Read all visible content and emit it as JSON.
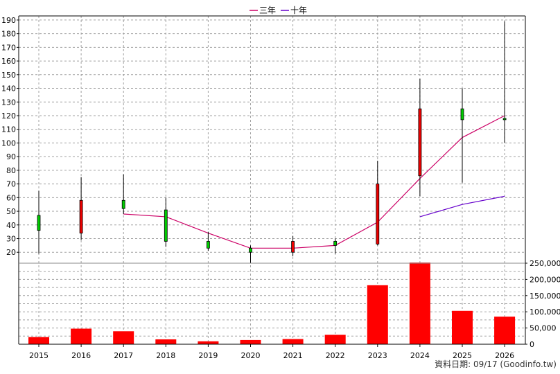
{
  "chart_data": {
    "type": "candlestick",
    "legend": [
      {
        "label": "三年",
        "color": "#cc0066"
      },
      {
        "label": "十年",
        "color": "#6600cc"
      }
    ],
    "footer": "資料日期: 09/17  (Goodinfo.tw)",
    "x_categories": [
      "2015",
      "2016",
      "2017",
      "2018",
      "2019",
      "2020",
      "2021",
      "2022",
      "2023",
      "2024",
      "2025",
      "2026"
    ],
    "price_axis": {
      "ylim": [
        12,
        193
      ],
      "ticks": [
        20,
        30,
        40,
        50,
        60,
        70,
        80,
        90,
        100,
        110,
        120,
        130,
        140,
        150,
        160,
        170,
        180,
        190
      ],
      "tick_labels": [
        "20",
        "30",
        "40",
        "50",
        "60",
        "70",
        "80",
        "90",
        "100",
        "110",
        "120",
        "130",
        "140",
        "150",
        "160",
        "170",
        "180",
        "190"
      ]
    },
    "volume_axis": {
      "ylim": [
        0,
        250000
      ],
      "ticks": [
        0,
        50000,
        100000,
        150000,
        200000,
        250000
      ],
      "tick_labels": [
        "0",
        "50,000",
        "100,000",
        "150,000",
        "200,000",
        "250,000"
      ]
    },
    "candles": [
      {
        "year": "2015",
        "open": 36,
        "high": 65,
        "low": 19,
        "close": 47
      },
      {
        "year": "2016",
        "open": 58,
        "high": 75,
        "low": 29,
        "close": 34
      },
      {
        "year": "2017",
        "open": 52,
        "high": 77,
        "low": 48,
        "close": 58
      },
      {
        "year": "2018",
        "open": 28,
        "high": 60,
        "low": 24,
        "close": 51
      },
      {
        "year": "2019",
        "open": 23,
        "high": 35,
        "low": 21,
        "close": 28
      },
      {
        "year": "2020",
        "open": 20,
        "high": 25,
        "low": 12,
        "close": 23
      },
      {
        "year": "2021",
        "open": 28,
        "high": 32,
        "low": 17,
        "close": 20
      },
      {
        "year": "2022",
        "open": 25,
        "high": 30,
        "low": 19,
        "close": 28
      },
      {
        "year": "2023",
        "open": 70,
        "high": 87,
        "low": 25,
        "close": 26
      },
      {
        "year": "2024",
        "open": 125,
        "high": 147,
        "low": 61,
        "close": 76
      },
      {
        "year": "2025",
        "open": 117,
        "high": 140,
        "low": 71,
        "close": 125
      },
      {
        "year": "2026",
        "open": 117,
        "high": 189,
        "low": 100,
        "close": 118
      }
    ],
    "series": [
      {
        "name": "三年",
        "color": "#cc0066",
        "years": [
          "2017",
          "2018",
          "2019",
          "2020",
          "2021",
          "2022",
          "2023",
          "2024",
          "2025",
          "2026"
        ],
        "values": [
          48,
          46,
          34,
          23,
          23,
          25,
          42,
          74,
          104,
          120
        ]
      },
      {
        "name": "十年",
        "color": "#6600cc",
        "years": [
          "2024",
          "2025",
          "2026"
        ],
        "values": [
          46,
          55,
          61
        ]
      }
    ],
    "volume": {
      "color": "#ff0000",
      "values": [
        22000,
        48000,
        40000,
        15000,
        9000,
        13000,
        16000,
        29000,
        182000,
        252000,
        103000,
        85000
      ]
    }
  }
}
